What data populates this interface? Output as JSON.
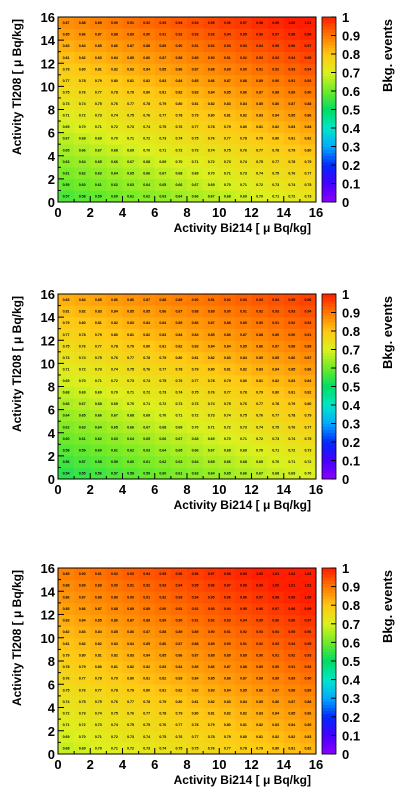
{
  "chart_data": [
    {
      "type": "heatmap",
      "xlabel": "Activity Bi214 [ μ Bq/kg]",
      "ylabel": "Activity Tl208 [ μ Bq/kg]",
      "zlabel": "Bkg. events",
      "xlim": [
        0,
        16
      ],
      "ylim": [
        0,
        16
      ],
      "zlim": [
        0,
        1
      ],
      "x_ticks": [
        "0",
        "2",
        "4",
        "6",
        "8",
        "10",
        "12",
        "14",
        "16"
      ],
      "y_ticks": [
        "0",
        "2",
        "4",
        "6",
        "8",
        "10",
        "12",
        "14",
        "16"
      ],
      "z_ticks": [
        "0",
        "0.1",
        "0.2",
        "0.3",
        "0.4",
        "0.5",
        "0.6",
        "0.7",
        "0.8",
        "0.9",
        "1"
      ],
      "bins": 16,
      "corner_values": {
        "bottom_left": 0.57,
        "bottom_right": 0.73,
        "top_left": 0.87,
        "top_right": 1.01
      }
    },
    {
      "type": "heatmap",
      "xlabel": "Activity Bi214 [ μ Bq/kg]",
      "ylabel": "Activity Tl208 [ μ Bq/kg]",
      "zlabel": "Bkg. events",
      "xlim": [
        0,
        16
      ],
      "ylim": [
        0,
        16
      ],
      "zlim": [
        0,
        1
      ],
      "x_ticks": [
        "0",
        "2",
        "4",
        "6",
        "8",
        "10",
        "12",
        "14",
        "16"
      ],
      "y_ticks": [
        "0",
        "2",
        "4",
        "6",
        "8",
        "10",
        "12",
        "14",
        "16"
      ],
      "z_ticks": [
        "0",
        "0.1",
        "0.2",
        "0.3",
        "0.4",
        "0.5",
        "0.6",
        "0.7",
        "0.8",
        "0.9",
        "1"
      ],
      "bins": 16,
      "corner_values": {
        "bottom_left": 0.54,
        "bottom_right": 0.7,
        "top_left": 0.83,
        "top_right": 0.96
      }
    },
    {
      "type": "heatmap",
      "xlabel": "Activity Bi214 [ μ Bq/kg]",
      "ylabel": "Activity Tl208 [ μ Bq/kg]",
      "zlabel": "Bkg. events",
      "xlim": [
        0,
        16
      ],
      "ylim": [
        0,
        16
      ],
      "zlim": [
        0,
        1
      ],
      "x_ticks": [
        "0",
        "2",
        "4",
        "6",
        "8",
        "10",
        "12",
        "14",
        "16"
      ],
      "y_ticks": [
        "0",
        "2",
        "4",
        "6",
        "8",
        "10",
        "12",
        "14",
        "16"
      ],
      "z_ticks": [
        "0",
        "0.1",
        "0.2",
        "0.3",
        "0.4",
        "0.5",
        "0.6",
        "0.7",
        "0.8",
        "0.9",
        "1"
      ],
      "bins": 16,
      "corner_values": {
        "bottom_left": 0.68,
        "bottom_right": 0.82,
        "top_left": 0.89,
        "top_right": 1.03
      }
    }
  ]
}
